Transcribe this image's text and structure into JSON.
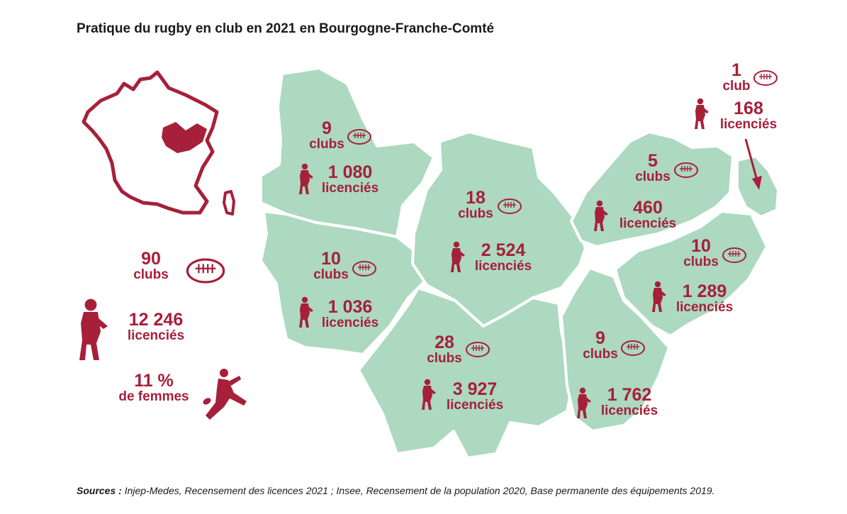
{
  "title": "Pratique du rugby en club en 2021 en Bourgogne-Franche-Comté",
  "sources": {
    "label": "Sources :",
    "text": " Injep-Medes, Recensement des licences 2021 ; Insee, Recensement de la population 2020, Base permanente des équipements 2019."
  },
  "colors": {
    "department_fill": "#acd9c0",
    "accent": "#a6203a"
  },
  "totals": {
    "clubs": "90",
    "clubs_unit": "clubs",
    "licencies": "12 246",
    "licencies_unit": "licenciés",
    "femmes_pct": "11 %",
    "femmes_unit": "de femmes"
  },
  "departments": [
    {
      "id": "yonne",
      "clubs": "9",
      "clubs_unit": "clubs",
      "licencies": "1 080",
      "licencies_unit": "licenciés"
    },
    {
      "id": "nievre",
      "clubs": "10",
      "clubs_unit": "clubs",
      "licencies": "1 036",
      "licencies_unit": "licenciés"
    },
    {
      "id": "cote-d-or",
      "clubs": "18",
      "clubs_unit": "clubs",
      "licencies": "2 524",
      "licencies_unit": "licenciés"
    },
    {
      "id": "saone-et-loire",
      "clubs": "28",
      "clubs_unit": "clubs",
      "licencies": "3 927",
      "licencies_unit": "licenciés"
    },
    {
      "id": "haute-saone",
      "clubs": "5",
      "clubs_unit": "clubs",
      "licencies": "460",
      "licencies_unit": "licenciés"
    },
    {
      "id": "doubs",
      "clubs": "10",
      "clubs_unit": "clubs",
      "licencies": "1 289",
      "licencies_unit": "licenciés"
    },
    {
      "id": "jura",
      "clubs": "9",
      "clubs_unit": "clubs",
      "licencies": "1 762",
      "licencies_unit": "licenciés"
    },
    {
      "id": "territoire-de-belfort",
      "clubs": "1",
      "clubs_unit": "club",
      "licencies": "168",
      "licencies_unit": "licenciés"
    }
  ]
}
